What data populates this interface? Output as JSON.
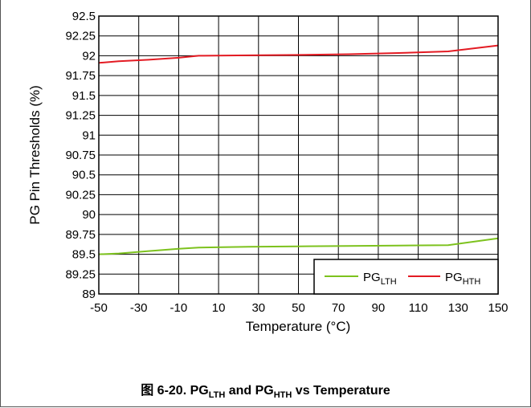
{
  "chart_data": {
    "type": "line",
    "xlabel": "Temperature (°C)",
    "ylabel": "PG Pin Thresholds (%)",
    "xlim": [
      -50,
      150
    ],
    "ylim": [
      89,
      92.5
    ],
    "xticks": [
      "-50",
      "-30",
      "-10",
      "10",
      "30",
      "50",
      "70",
      "90",
      "110",
      "130",
      "150"
    ],
    "yticks": [
      "89",
      "89.25",
      "89.5",
      "89.75",
      "90",
      "90.25",
      "90.5",
      "90.75",
      "91",
      "91.25",
      "91.5",
      "91.75",
      "92",
      "92.25",
      "92.5"
    ],
    "grid": true,
    "legend_position": "bottom-right",
    "series": [
      {
        "name_main": "PG",
        "name_sub": "LTH",
        "color": "#7dc21e",
        "x": [
          -50,
          -40,
          -25,
          -10,
          0,
          25,
          50,
          75,
          100,
          125,
          150
        ],
        "y": [
          89.5,
          89.51,
          89.54,
          89.57,
          89.585,
          89.595,
          89.6,
          89.605,
          89.61,
          89.615,
          89.7
        ]
      },
      {
        "name_main": "PG",
        "name_sub": "HTH",
        "color": "#e31b23",
        "x": [
          -50,
          -40,
          -25,
          -10,
          0,
          25,
          50,
          75,
          100,
          125,
          150
        ],
        "y": [
          91.91,
          91.93,
          91.95,
          91.975,
          92.0,
          92.005,
          92.01,
          92.02,
          92.035,
          92.055,
          92.13
        ]
      }
    ]
  },
  "caption": {
    "prefix": "图 6-20. PG",
    "sub1": "LTH",
    "mid": " and PG",
    "sub2": "HTH",
    "suffix": " vs Temperature"
  }
}
